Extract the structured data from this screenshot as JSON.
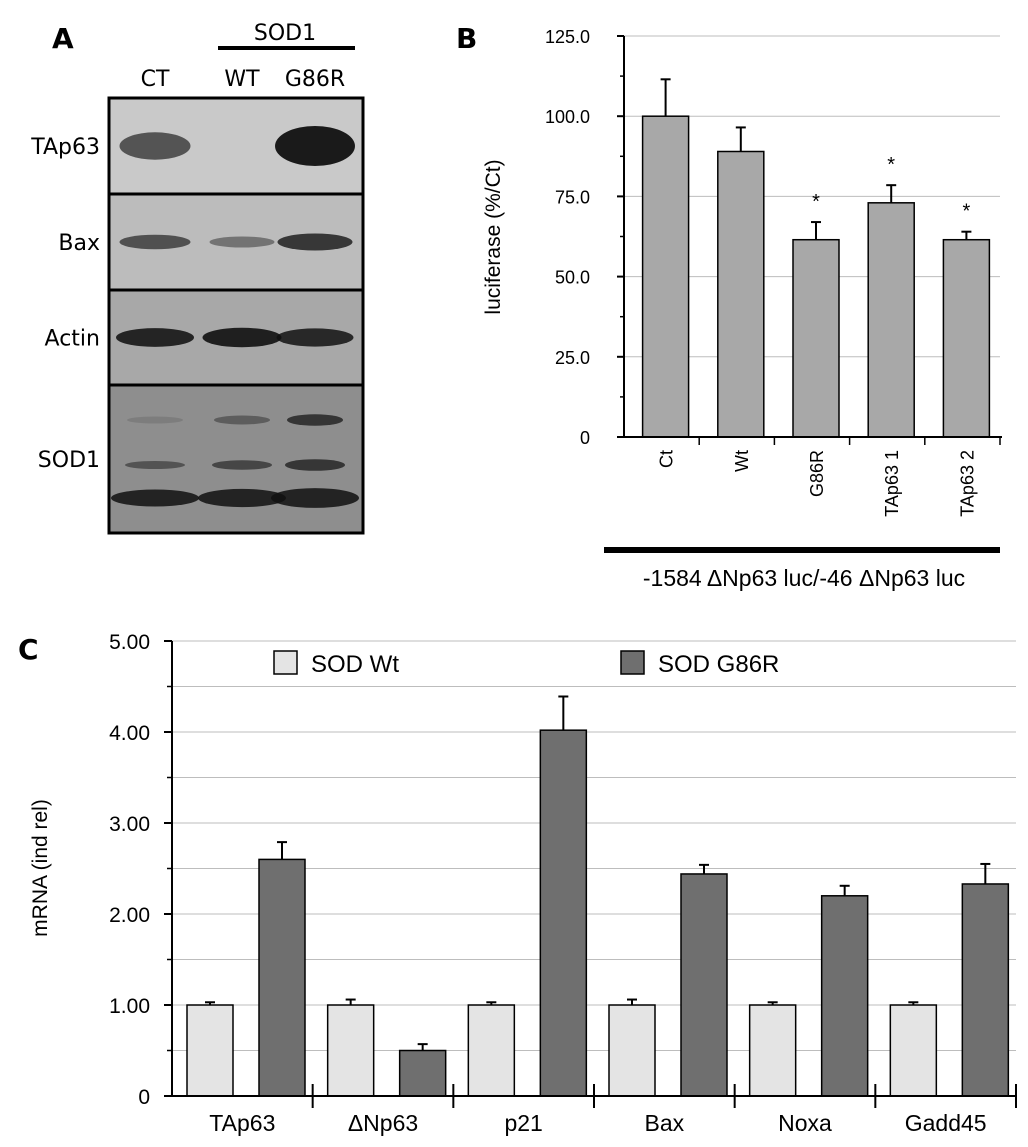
{
  "panels": {
    "a": "A",
    "b": "B",
    "c": "C"
  },
  "western_blot": {
    "group_label": "SOD1",
    "lanes": [
      "CT",
      "WT",
      "G86R"
    ],
    "rows": [
      {
        "label": "TAp63",
        "intensity": [
          0.55,
          0.0,
          1.0
        ]
      },
      {
        "label": "Bax",
        "intensity": [
          0.55,
          0.25,
          0.75
        ]
      },
      {
        "label": "Actin",
        "intensity": [
          0.9,
          0.95,
          0.85
        ]
      },
      {
        "label": "SOD1",
        "intensity": [
          0.5,
          0.7,
          0.95
        ]
      }
    ]
  },
  "colors": {
    "panel_b_bar": "#a8a8a8",
    "sod_wt": "#e4e4e4",
    "sod_g86r": "#6f6f6f",
    "grid": "#bdbdbd"
  },
  "chart_data": [
    {
      "type": "bar",
      "panel": "B",
      "categories": [
        "Ct",
        "Wt",
        "G86R",
        "TAp63 1",
        "TAp63 2"
      ],
      "values": [
        100.0,
        89.0,
        61.5,
        73.0,
        61.5
      ],
      "errors": [
        11.5,
        7.5,
        5.5,
        5.5,
        2.5
      ],
      "significance": [
        "",
        "",
        "*",
        "*",
        "*"
      ],
      "ylabel": "luciferase (%/Ct)",
      "yticks": [
        "0",
        "25.0",
        "50.0",
        "75.0",
        "100.0",
        "125.0"
      ],
      "ylim": [
        0,
        125
      ],
      "grid": true,
      "xlabel": "-1584 ΔNp63 luc/-46 ΔNp63 luc"
    },
    {
      "type": "bar",
      "panel": "C",
      "categories": [
        "TAp63",
        "ΔNp63",
        "p21",
        "Bax",
        "Noxa",
        "Gadd45"
      ],
      "series": [
        {
          "name": "SOD Wt",
          "values": [
            1.0,
            1.0,
            1.0,
            1.0,
            1.0,
            1.0
          ],
          "errors": [
            0.03,
            0.06,
            0.03,
            0.06,
            0.03,
            0.03
          ]
        },
        {
          "name": "SOD G86R",
          "values": [
            2.6,
            0.5,
            4.02,
            2.44,
            2.2,
            2.33
          ],
          "errors": [
            0.19,
            0.07,
            0.37,
            0.1,
            0.11,
            0.22
          ]
        }
      ],
      "ylabel": "mRNA (ind rel)",
      "yticks": [
        "0",
        "1.00",
        "2.00",
        "3.00",
        "4.00",
        "5.00"
      ],
      "ylim": [
        0,
        5
      ],
      "grid": true,
      "legend": "top"
    }
  ]
}
